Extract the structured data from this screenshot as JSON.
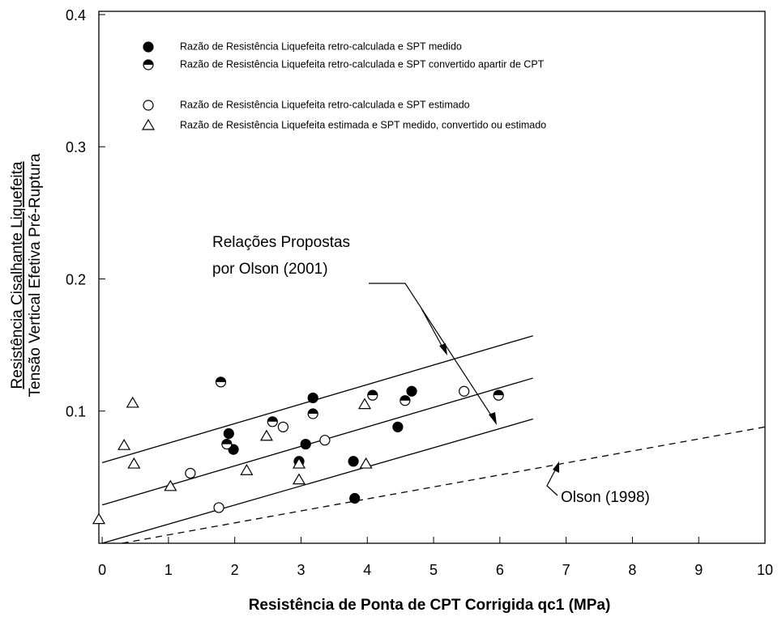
{
  "chart_data": {
    "type": "scatter",
    "xlabel": "Resistência de Ponta de CPT Corrigida qc1 (MPa)",
    "ylabel": [
      "Resistência Cisalhante Liquefeita",
      "Tensão Vertical Efetiva Pré-Ruptura"
    ],
    "xlim": [
      -0.05,
      10
    ],
    "ylim": [
      0,
      0.4
    ],
    "xticks": [
      0,
      1,
      2,
      3,
      4,
      5,
      6,
      7,
      8,
      9,
      10
    ],
    "yticks": [
      0.1,
      0.2,
      0.3,
      0.4
    ],
    "series": [
      {
        "name": "Razão de Resistência Liquefeita retro-calculada e SPT medido",
        "marker": "filled",
        "color": "#000000",
        "x": [
          1.91,
          1.98,
          3.07,
          2.97,
          3.18,
          3.79,
          3.81,
          4.46,
          4.67
        ],
        "values": [
          0.083,
          0.071,
          0.075,
          0.062,
          0.11,
          0.062,
          0.034,
          0.088,
          0.115
        ]
      },
      {
        "name": "Razão de Resistência Liquefeita retro-calculada e SPT convertido apartir de CPT",
        "marker": "half",
        "color": "#000000",
        "x": [
          1.79,
          1.88,
          2.57,
          3.18,
          4.08,
          4.57,
          5.98
        ],
        "values": [
          0.122,
          0.075,
          0.092,
          0.098,
          0.112,
          0.108,
          0.112
        ]
      },
      {
        "name": "Razão de Resistência Liquefeita retro-calculada e SPT estimado",
        "marker": "open",
        "color": "#000000",
        "x": [
          1.76,
          1.33,
          2.73,
          3.36,
          5.46
        ],
        "values": [
          0.027,
          0.053,
          0.088,
          0.078,
          0.115
        ]
      },
      {
        "name": "Razão de Resistência Liquefeita estimada e SPT medido, convertido ou estimado",
        "marker": "triangle",
        "color": "#000000",
        "x": [
          -0.05,
          0.46,
          0.33,
          0.48,
          1.03,
          2.18,
          2.48,
          2.97,
          2.97,
          3.96,
          3.98
        ],
        "values": [
          0.018,
          0.106,
          0.074,
          0.06,
          0.043,
          0.055,
          0.081,
          0.06,
          0.048,
          0.105,
          0.06
        ]
      }
    ],
    "lines": [
      {
        "x": [
          0,
          6.5
        ],
        "values": [
          0.061,
          0.157
        ],
        "dash": false
      },
      {
        "x": [
          0,
          6.5
        ],
        "values": [
          0.029,
          0.125
        ],
        "dash": false
      },
      {
        "x": [
          0,
          6.5
        ],
        "values": [
          0,
          0.094
        ],
        "dash": false
      },
      {
        "x": [
          0.3,
          10
        ],
        "values": [
          0,
          0.088
        ],
        "dash": true
      }
    ],
    "annotations": [
      "Relações Propostas",
      "por Olson (2001)",
      "Olson (1998)"
    ]
  }
}
